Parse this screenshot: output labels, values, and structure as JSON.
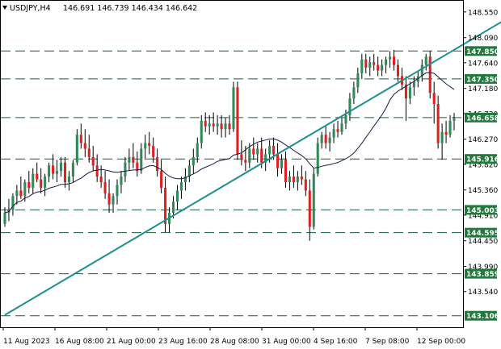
{
  "header": {
    "symbol": "USDJPY,H4",
    "ohlc": "146.691 146.739 146.434 146.642"
  },
  "colors": {
    "bull": "#2e8b57",
    "bear": "#e0201e",
    "wick": "#000000",
    "level_line": "#1c5a3a",
    "level_badge": "#1f7a3c",
    "trendline": "#1e8f8f",
    "ma": "#1a1a40"
  },
  "chart_data": {
    "type": "candlestick",
    "ylim": [
      142.9,
      148.75
    ],
    "yticks": [
      "148.550",
      "148.090",
      "147.640",
      "147.180",
      "146.730",
      "146.270",
      "145.820",
      "145.360",
      "144.910",
      "144.450",
      "143.990",
      "143.540"
    ],
    "xticks": [
      "11 Aug 2023",
      "16 Aug 08:00",
      "21 Aug 00:00",
      "23 Aug 16:00",
      "28 Aug 08:00",
      "31 Aug 00:00",
      "4 Sep 16:00",
      "7 Sep 08:00",
      "12 Sep 00:00"
    ],
    "levels": [
      "147.850",
      "147.350",
      "146.658",
      "145.916",
      "145.003",
      "144.595",
      "143.859",
      "143.106"
    ],
    "trendline": {
      "from": [
        0,
        143.12
      ],
      "to": [
        132,
        148.72
      ]
    },
    "candles": [
      [
        144.75,
        145.05,
        144.7,
        144.95
      ],
      [
        144.95,
        145.2,
        144.8,
        145.0
      ],
      [
        145.0,
        145.3,
        144.9,
        145.25
      ],
      [
        145.25,
        145.45,
        145.1,
        145.35
      ],
      [
        145.35,
        145.6,
        145.2,
        145.25
      ],
      [
        145.25,
        145.55,
        145.15,
        145.5
      ],
      [
        145.5,
        145.7,
        145.3,
        145.4
      ],
      [
        145.4,
        145.75,
        145.3,
        145.65
      ],
      [
        145.65,
        145.85,
        145.5,
        145.55
      ],
      [
        145.55,
        145.75,
        145.3,
        145.4
      ],
      [
        145.4,
        145.65,
        145.25,
        145.6
      ],
      [
        145.6,
        145.85,
        145.5,
        145.8
      ],
      [
        145.8,
        146.0,
        145.55,
        145.65
      ],
      [
        145.65,
        145.9,
        145.5,
        145.7
      ],
      [
        145.7,
        145.95,
        145.6,
        145.85
      ],
      [
        145.85,
        145.95,
        145.4,
        145.5
      ],
      [
        145.5,
        145.7,
        145.35,
        145.6
      ],
      [
        145.6,
        145.9,
        145.5,
        145.85
      ],
      [
        145.85,
        146.45,
        145.8,
        146.35
      ],
      [
        146.35,
        146.55,
        146.1,
        146.2
      ],
      [
        146.2,
        146.45,
        145.95,
        146.1
      ],
      [
        146.1,
        146.35,
        145.85,
        145.95
      ],
      [
        145.95,
        146.15,
        145.7,
        145.8
      ],
      [
        145.8,
        146.0,
        145.5,
        145.6
      ],
      [
        145.6,
        145.8,
        145.4,
        145.5
      ],
      [
        145.5,
        145.7,
        145.2,
        145.3
      ],
      [
        145.3,
        145.55,
        144.95,
        145.1
      ],
      [
        145.1,
        145.3,
        144.95,
        145.25
      ],
      [
        145.25,
        145.55,
        145.1,
        145.45
      ],
      [
        145.45,
        145.7,
        145.3,
        145.6
      ],
      [
        145.6,
        145.95,
        145.5,
        145.85
      ],
      [
        145.85,
        146.1,
        145.7,
        145.95
      ],
      [
        145.95,
        146.2,
        145.75,
        145.85
      ],
      [
        145.85,
        146.05,
        145.6,
        145.7
      ],
      [
        145.7,
        146.2,
        145.65,
        146.1
      ],
      [
        146.1,
        146.35,
        145.9,
        146.2
      ],
      [
        146.2,
        146.4,
        146.0,
        146.15
      ],
      [
        146.15,
        146.3,
        145.85,
        145.95
      ],
      [
        145.95,
        146.1,
        145.6,
        145.7
      ],
      [
        145.7,
        145.9,
        145.3,
        145.4
      ],
      [
        145.4,
        145.6,
        144.6,
        144.75
      ],
      [
        144.75,
        145.05,
        144.6,
        144.95
      ],
      [
        144.95,
        145.25,
        144.85,
        145.15
      ],
      [
        145.15,
        145.45,
        145.0,
        145.35
      ],
      [
        145.35,
        145.6,
        145.2,
        145.5
      ],
      [
        145.5,
        145.75,
        145.35,
        145.6
      ],
      [
        145.6,
        145.9,
        145.5,
        145.8
      ],
      [
        145.8,
        146.1,
        145.65,
        145.95
      ],
      [
        145.95,
        146.3,
        145.85,
        146.2
      ],
      [
        146.2,
        146.7,
        146.1,
        146.6
      ],
      [
        146.6,
        146.75,
        146.4,
        146.5
      ],
      [
        146.5,
        146.7,
        146.35,
        146.55
      ],
      [
        146.55,
        146.75,
        146.4,
        146.5
      ],
      [
        146.5,
        146.7,
        146.35,
        146.55
      ],
      [
        146.55,
        146.7,
        146.3,
        146.45
      ],
      [
        146.45,
        146.65,
        146.3,
        146.55
      ],
      [
        146.55,
        146.7,
        146.35,
        146.45
      ],
      [
        146.45,
        147.3,
        146.4,
        147.2
      ],
      [
        147.2,
        147.3,
        145.9,
        146.0
      ],
      [
        146.0,
        146.25,
        145.8,
        145.9
      ],
      [
        145.9,
        146.15,
        145.7,
        145.85
      ],
      [
        145.85,
        146.2,
        145.75,
        146.1
      ],
      [
        146.1,
        146.3,
        145.9,
        146.0
      ],
      [
        146.0,
        146.2,
        145.85,
        146.1
      ],
      [
        146.1,
        146.3,
        145.75,
        145.85
      ],
      [
        145.85,
        146.1,
        145.7,
        146.0
      ],
      [
        146.0,
        146.25,
        145.85,
        146.15
      ],
      [
        146.15,
        146.3,
        145.9,
        146.0
      ],
      [
        146.0,
        146.2,
        145.6,
        145.75
      ],
      [
        145.75,
        146.0,
        145.65,
        145.9
      ],
      [
        145.9,
        146.05,
        145.4,
        145.5
      ],
      [
        145.5,
        145.7,
        145.35,
        145.6
      ],
      [
        145.6,
        145.8,
        145.4,
        145.5
      ],
      [
        145.5,
        145.7,
        145.35,
        145.6
      ],
      [
        145.6,
        145.8,
        145.45,
        145.55
      ],
      [
        145.55,
        145.7,
        145.25,
        145.35
      ],
      [
        145.35,
        145.55,
        144.45,
        144.7
      ],
      [
        144.7,
        145.75,
        144.65,
        145.65
      ],
      [
        145.65,
        146.3,
        145.6,
        146.2
      ],
      [
        146.2,
        146.4,
        146.1,
        146.35
      ],
      [
        146.35,
        146.5,
        146.1,
        146.2
      ],
      [
        146.2,
        146.4,
        146.05,
        146.3
      ],
      [
        146.3,
        146.55,
        146.2,
        146.45
      ],
      [
        146.45,
        146.6,
        146.3,
        146.4
      ],
      [
        146.4,
        146.65,
        146.35,
        146.55
      ],
      [
        146.55,
        146.8,
        146.45,
        146.7
      ],
      [
        146.7,
        147.1,
        146.6,
        147.0
      ],
      [
        147.0,
        147.3,
        146.9,
        147.2
      ],
      [
        147.2,
        147.55,
        147.1,
        147.45
      ],
      [
        147.45,
        147.8,
        147.35,
        147.7
      ],
      [
        147.7,
        147.8,
        147.45,
        147.55
      ],
      [
        147.55,
        147.75,
        147.4,
        147.65
      ],
      [
        147.65,
        147.8,
        147.5,
        147.6
      ],
      [
        147.6,
        147.75,
        147.4,
        147.5
      ],
      [
        147.5,
        147.7,
        147.4,
        147.6
      ],
      [
        147.6,
        147.75,
        147.45,
        147.7
      ],
      [
        147.7,
        147.85,
        147.55,
        147.75
      ],
      [
        147.75,
        147.87,
        147.5,
        147.6
      ],
      [
        147.6,
        147.7,
        147.3,
        147.4
      ],
      [
        147.4,
        147.55,
        147.15,
        147.25
      ],
      [
        147.25,
        147.4,
        146.6,
        147.0
      ],
      [
        147.0,
        147.3,
        146.9,
        147.2
      ],
      [
        147.2,
        147.4,
        147.05,
        147.3
      ],
      [
        147.3,
        147.5,
        147.2,
        147.4
      ],
      [
        147.4,
        147.7,
        147.3,
        147.6
      ],
      [
        147.6,
        147.8,
        147.5,
        147.75
      ],
      [
        147.75,
        147.85,
        147.0,
        147.1
      ],
      [
        147.1,
        147.3,
        146.55,
        146.9
      ],
      [
        146.9,
        147.05,
        146.1,
        146.2
      ],
      [
        146.2,
        146.55,
        145.9,
        146.4
      ],
      [
        146.4,
        146.6,
        146.2,
        146.35
      ],
      [
        146.35,
        146.7,
        146.3,
        146.6
      ],
      [
        146.6,
        146.74,
        146.43,
        146.64
      ]
    ]
  }
}
